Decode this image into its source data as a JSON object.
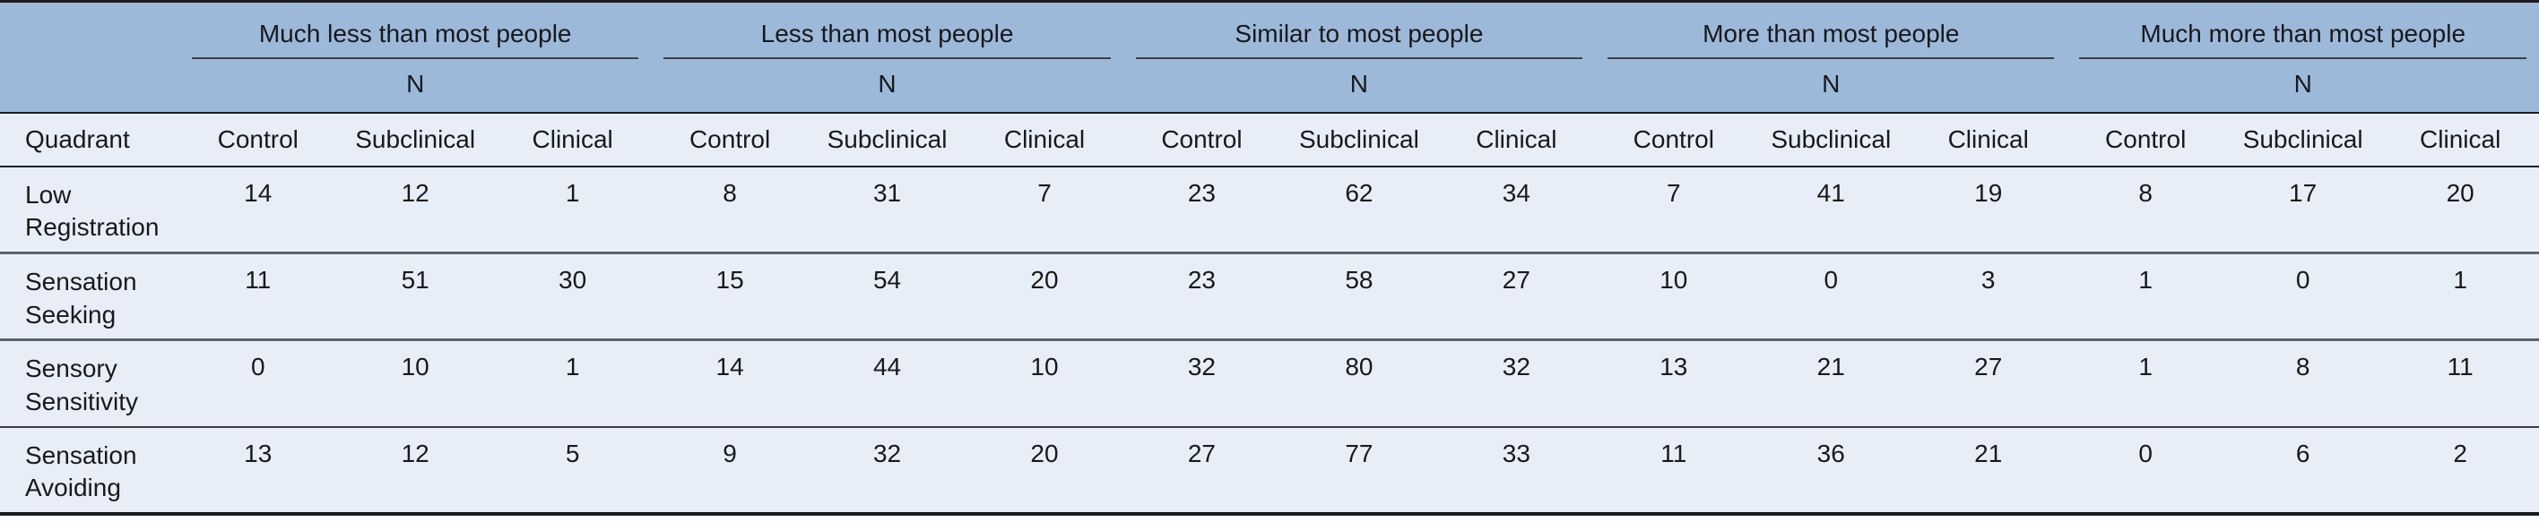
{
  "table": {
    "group_headers": [
      "Much less than most people",
      "Less than most people",
      "Similar to most people",
      "More than most people",
      "Much more than most people"
    ],
    "n_label": "N",
    "quadrant_label": "Quadrant",
    "sub_headers": [
      "Control",
      "Subclinical",
      "Clinical"
    ],
    "rows": [
      {
        "label": "Low Registration",
        "values": [
          "14",
          "12",
          "1",
          "8",
          "31",
          "7",
          "23",
          "62",
          "34",
          "7",
          "41",
          "19",
          "8",
          "17",
          "20"
        ]
      },
      {
        "label": "Sensation Seeking",
        "values": [
          "11",
          "51",
          "30",
          "15",
          "54",
          "20",
          "23",
          "58",
          "27",
          "10",
          "0",
          "3",
          "1",
          "0",
          "1"
        ]
      },
      {
        "label": "Sensory Sensitivity",
        "values": [
          "0",
          "10",
          "1",
          "14",
          "44",
          "10",
          "32",
          "80",
          "32",
          "13",
          "21",
          "27",
          "1",
          "8",
          "11"
        ]
      },
      {
        "label": "Sensation Avoiding",
        "values": [
          "13",
          "12",
          "5",
          "9",
          "32",
          "20",
          "27",
          "77",
          "33",
          "11",
          "36",
          "21",
          "0",
          "6",
          "2"
        ]
      }
    ]
  },
  "colors": {
    "header_background": "#9db9da",
    "body_background": "#e8eef7",
    "heavy_rule": "#191b1e",
    "light_rule": "#5d636c",
    "text": "#17191c"
  }
}
